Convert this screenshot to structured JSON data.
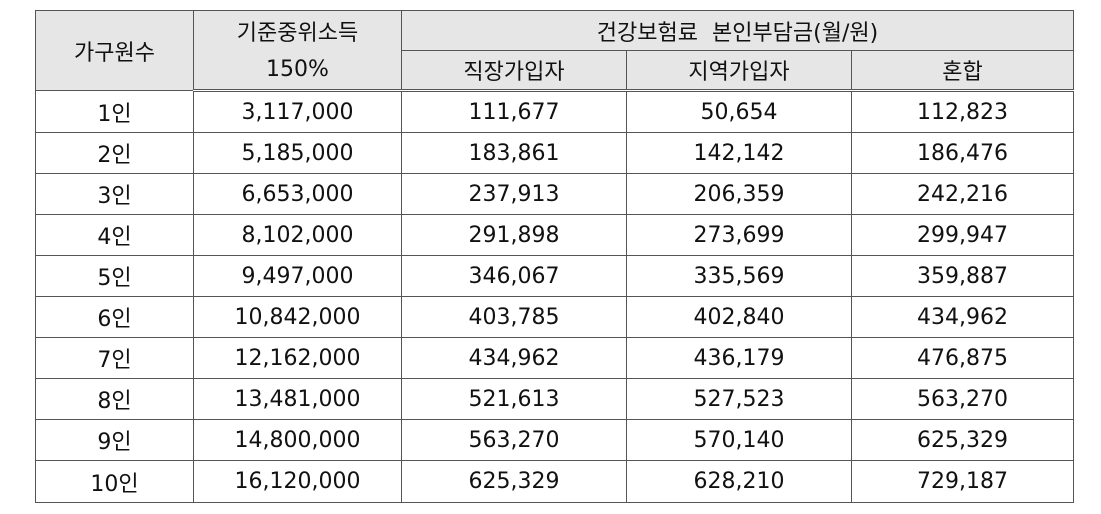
{
  "header": {
    "household": "가구원수",
    "income_line1": "기준중위소득",
    "income_line2": "150%",
    "premium_group": "건강보험료  본인부담금(월/원)",
    "employee": "직장가입자",
    "regional": "지역가입자",
    "mixed": "혼합"
  },
  "rows": [
    {
      "household": "1인",
      "income": "3,117,000",
      "employee": "111,677",
      "regional": "50,654",
      "mixed": "112,823"
    },
    {
      "household": "2인",
      "income": "5,185,000",
      "employee": "183,861",
      "regional": "142,142",
      "mixed": "186,476"
    },
    {
      "household": "3인",
      "income": "6,653,000",
      "employee": "237,913",
      "regional": "206,359",
      "mixed": "242,216"
    },
    {
      "household": "4인",
      "income": "8,102,000",
      "employee": "291,898",
      "regional": "273,699",
      "mixed": "299,947"
    },
    {
      "household": "5인",
      "income": "9,497,000",
      "employee": "346,067",
      "regional": "335,569",
      "mixed": "359,887"
    },
    {
      "household": "6인",
      "income": "10,842,000",
      "employee": "403,785",
      "regional": "402,840",
      "mixed": "434,962"
    },
    {
      "household": "7인",
      "income": "12,162,000",
      "employee": "434,962",
      "regional": "436,179",
      "mixed": "476,875"
    },
    {
      "household": "8인",
      "income": "13,481,000",
      "employee": "521,613",
      "regional": "527,523",
      "mixed": "563,270"
    },
    {
      "household": "9인",
      "income": "14,800,000",
      "employee": "563,270",
      "regional": "570,140",
      "mixed": "625,329"
    },
    {
      "household": "10인",
      "income": "16,120,000",
      "employee": "625,329",
      "regional": "628,210",
      "mixed": "729,187"
    }
  ]
}
